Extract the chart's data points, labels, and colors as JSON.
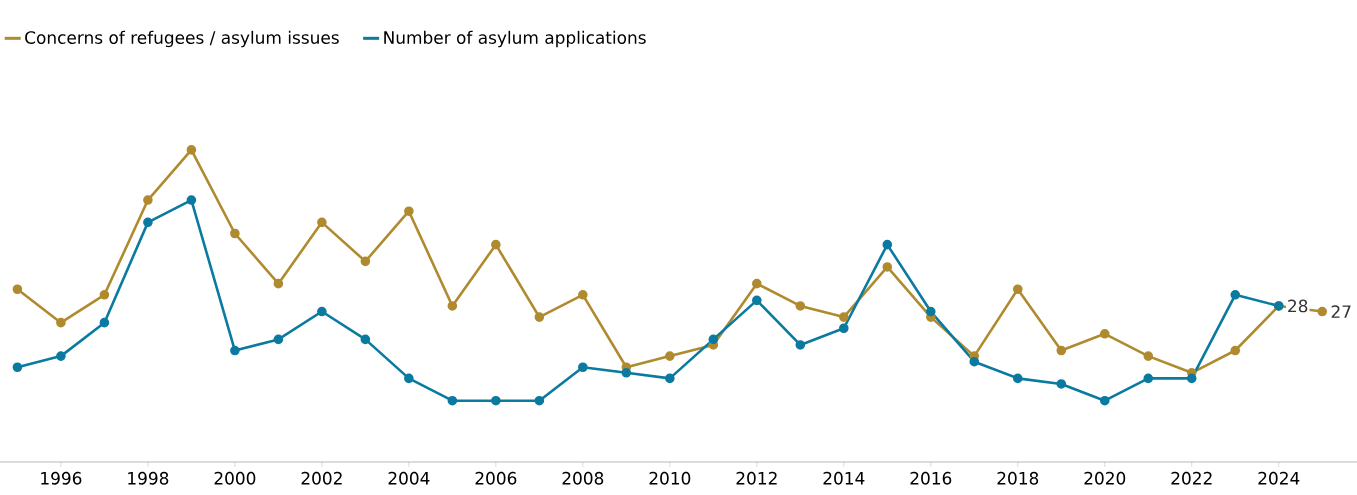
{
  "chart_data": {
    "type": "line",
    "x": [
      1995,
      1996,
      1997,
      1998,
      1999,
      2000,
      2001,
      2002,
      2003,
      2004,
      2005,
      2006,
      2007,
      2008,
      2009,
      2010,
      2011,
      2012,
      2013,
      2014,
      2015,
      2016,
      2017,
      2018,
      2019,
      2020,
      2021,
      2022,
      2023,
      2024,
      2025
    ],
    "xlim": [
      1994.6,
      2025.8
    ],
    "xticks": [
      1996,
      1998,
      2000,
      2002,
      2004,
      2006,
      2008,
      2010,
      2012,
      2014,
      2016,
      2018,
      2020,
      2022,
      2024
    ],
    "tick_labels": "x",
    "legend": "top left",
    "marker": "circle",
    "line_style": "solid",
    "series": [
      {
        "name": "Concerns of refugees / asylum issues",
        "color": "#b08a2e",
        "values": [
          31,
          25,
          30,
          47,
          56,
          41,
          32,
          43,
          36,
          45,
          28,
          39,
          26,
          30,
          17,
          19,
          21,
          32,
          28,
          26,
          35,
          26,
          19,
          31,
          20,
          23,
          19,
          16,
          20,
          28,
          27
        ],
        "value_labels": [
          null,
          null,
          null,
          null,
          null,
          null,
          null,
          null,
          null,
          null,
          null,
          null,
          null,
          null,
          null,
          null,
          null,
          null,
          null,
          null,
          null,
          null,
          null,
          null,
          null,
          null,
          null,
          null,
          null,
          "28",
          "27"
        ]
      },
      {
        "name": "Number of asylum applications",
        "color": "#0a7aa0",
        "values": [
          17,
          19,
          25,
          43,
          47,
          20,
          22,
          27,
          22,
          15,
          11,
          11,
          11,
          17,
          16,
          15,
          22,
          29,
          21,
          24,
          39,
          27,
          18,
          15,
          14,
          11,
          15,
          15,
          30,
          28,
          null
        ]
      }
    ]
  }
}
